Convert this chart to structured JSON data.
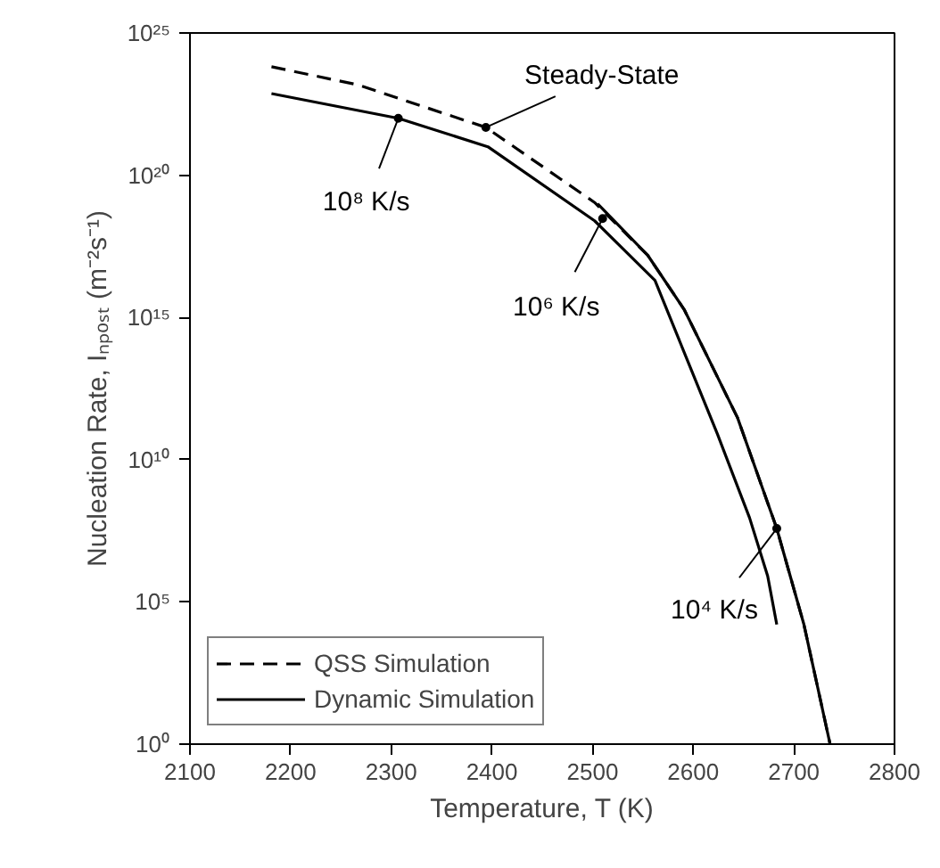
{
  "chart_data": {
    "type": "line",
    "xlabel": "Temperature, T (K)",
    "ylabel": "Nucleation Rate, Iₙₚₒₛₜ (m⁻²s⁻¹)",
    "log": "y",
    "grid": false,
    "legend": "bottom left",
    "xlim": [
      2100,
      2800
    ],
    "xticks": [
      2100,
      2200,
      2300,
      2400,
      2500,
      2600,
      2700,
      2800
    ],
    "ylim": [
      1,
      1e+25
    ],
    "yticks": [
      {
        "value": 1,
        "label": "10⁰"
      },
      {
        "value": 100000.0,
        "label": "10⁵"
      },
      {
        "value": 10000000000.0,
        "label": "10¹⁰"
      },
      {
        "value": 1000000000000000.0,
        "label": "10¹⁵"
      },
      {
        "value": 1e+20,
        "label": "10²⁰"
      },
      {
        "value": 1e+25,
        "label": "10²⁵"
      }
    ],
    "series": [
      {
        "name": "QSS Simulation",
        "color": "#000000",
        "line_style": "dashed",
        "x": [
          2181,
          2267,
          2394,
          2502,
          2555,
          2591,
          2644,
          2683,
          2710,
          2736
        ],
        "values": [
          6.5e+23,
          1.5e+23,
          4.8e+21,
          1.1e+19,
          1.5e+17,
          1900000000000000.0,
          300000000000.0,
          38000000.0,
          16000.0,
          1
        ]
      },
      {
        "name": "Dynamic Simulation",
        "color": "#000000",
        "line_style": "solid",
        "x": [
          2181,
          2307,
          2396,
          2502,
          2562,
          2624,
          2656,
          2674,
          2683
        ],
        "values": [
          7.4e+22,
          1e+22,
          1e+21,
          2.5e+18,
          2e+16,
          80000000000.0,
          90000000.0,
          800000.0,
          16000.0
        ]
      },
      {
        "color": "#000000",
        "line_style": "solid",
        "x": [
          2505,
          2555,
          2591,
          2644,
          2683,
          2710,
          2736
        ],
        "values": [
          1e+19,
          1.5e+17,
          1900000000000000.0,
          300000000000.0,
          38000000.0,
          16000.0,
          1
        ]
      }
    ],
    "annotations": [
      {
        "text": "Steady-State",
        "x": 2394,
        "y": 4.8e+21
      },
      {
        "text": "10⁸ K/s",
        "x": 2307,
        "y": 1e+22
      },
      {
        "text": "10⁶ K/s",
        "x": 2510,
        "y": 3e+18
      },
      {
        "text": "10⁴ K/s",
        "x": 2683,
        "y": 38000000.0
      }
    ]
  }
}
